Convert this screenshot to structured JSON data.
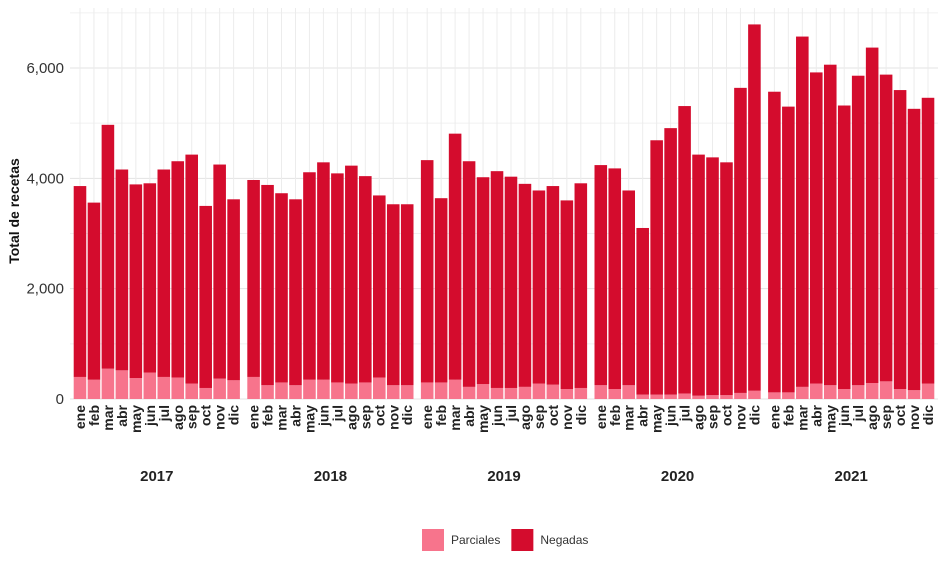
{
  "chart_data": {
    "type": "bar",
    "stacked": true,
    "ylabel": "Total de recetas",
    "xlabel": "",
    "ylim": [
      0,
      7000
    ],
    "yticks": [
      0,
      2000,
      4000,
      6000
    ],
    "ytick_labels": [
      "0",
      "2,000",
      "4,000",
      "6,000"
    ],
    "grid": true,
    "legend_position": "bottom",
    "months": [
      "ene",
      "feb",
      "mar",
      "abr",
      "may",
      "jun",
      "jul",
      "ago",
      "sep",
      "oct",
      "nov",
      "dic"
    ],
    "years": [
      "2017",
      "2018",
      "2019",
      "2020",
      "2021"
    ],
    "series": [
      {
        "name": "Parciales",
        "color": "#f7748c",
        "values": [
          400,
          350,
          550,
          520,
          380,
          480,
          400,
          390,
          280,
          200,
          370,
          340,
          400,
          250,
          300,
          250,
          350,
          350,
          300,
          280,
          300,
          390,
          250,
          250,
          300,
          300,
          350,
          220,
          270,
          200,
          200,
          220,
          280,
          260,
          180,
          200,
          250,
          180,
          250,
          80,
          80,
          80,
          100,
          60,
          70,
          70,
          110,
          150,
          120,
          120,
          220,
          280,
          250,
          180,
          250,
          290,
          320,
          180,
          160,
          280
        ]
      },
      {
        "name": "Negadas",
        "color": "#d40c2d",
        "values": [
          3460,
          3210,
          4420,
          3640,
          3510,
          3430,
          3760,
          3920,
          4150,
          3300,
          3880,
          3280,
          3570,
          3630,
          3430,
          3370,
          3760,
          3940,
          3790,
          3950,
          3740,
          3300,
          3280,
          3280,
          4030,
          3340,
          4460,
          4090,
          3750,
          3930,
          3830,
          3680,
          3500,
          3600,
          3420,
          3710,
          3990,
          4000,
          3530,
          3020,
          4610,
          4830,
          5210,
          4370,
          4310,
          4220,
          5530,
          6640,
          5450,
          5180,
          6350,
          5640,
          5810,
          5140,
          5610,
          6080,
          5560,
          5420,
          5100,
          5180
        ]
      }
    ]
  }
}
